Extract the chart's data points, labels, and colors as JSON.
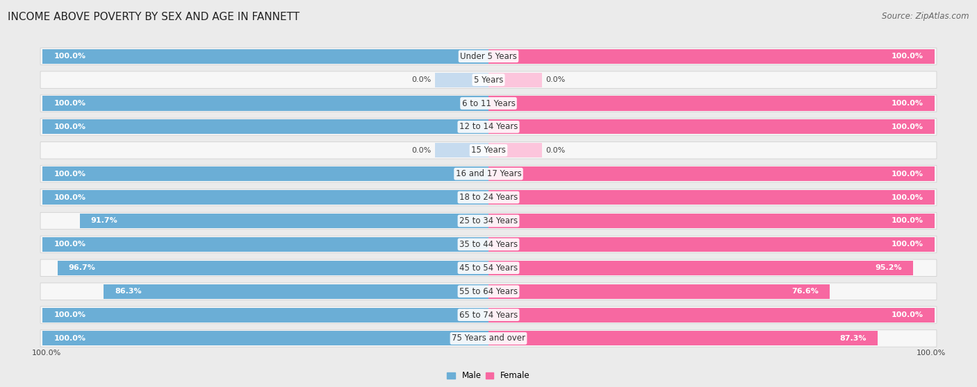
{
  "title": "INCOME ABOVE POVERTY BY SEX AND AGE IN FANNETT",
  "source": "Source: ZipAtlas.com",
  "categories": [
    "Under 5 Years",
    "5 Years",
    "6 to 11 Years",
    "12 to 14 Years",
    "15 Years",
    "16 and 17 Years",
    "18 to 24 Years",
    "25 to 34 Years",
    "35 to 44 Years",
    "45 to 54 Years",
    "55 to 64 Years",
    "65 to 74 Years",
    "75 Years and over"
  ],
  "male": [
    100.0,
    0.0,
    100.0,
    100.0,
    0.0,
    100.0,
    100.0,
    91.7,
    100.0,
    96.7,
    86.3,
    100.0,
    100.0
  ],
  "female": [
    100.0,
    0.0,
    100.0,
    100.0,
    0.0,
    100.0,
    100.0,
    100.0,
    100.0,
    95.2,
    76.6,
    100.0,
    87.3
  ],
  "male_color": "#6baed6",
  "female_color": "#f768a1",
  "male_color_light": "#c6dbef",
  "female_color_light": "#fcc5dc",
  "background_color": "#ebebeb",
  "row_bg_color": "#f7f7f7",
  "title_fontsize": 11,
  "label_fontsize": 8.5,
  "value_fontsize": 8,
  "source_fontsize": 8.5,
  "xlim": 100.0,
  "zero_stub": 12.0,
  "legend_labels": [
    "Male",
    "Female"
  ]
}
